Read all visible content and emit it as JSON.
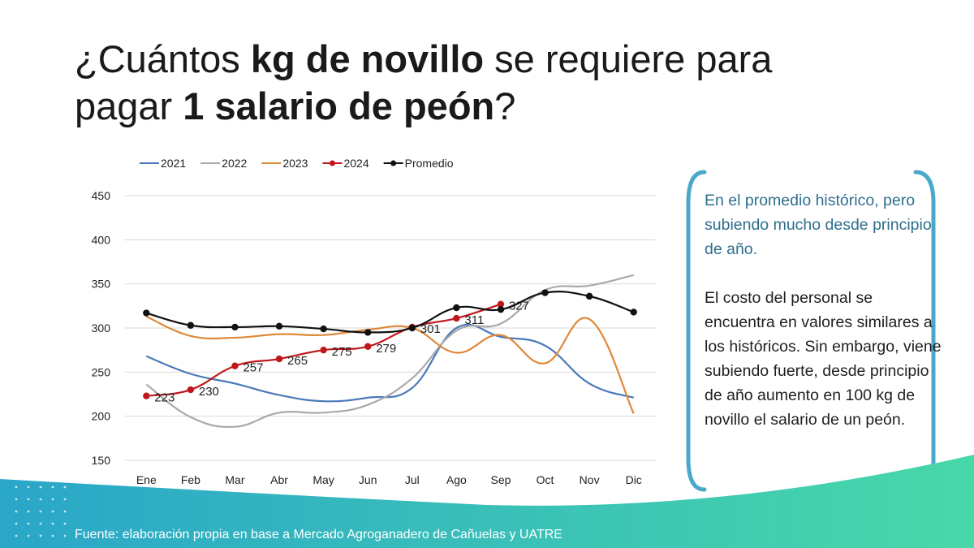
{
  "title": {
    "part1": "¿Cuántos ",
    "bold1": "kg de novillo",
    "part2": " se requiere para",
    "part3": "pagar ",
    "bold2": "1 salario de peón",
    "part4": "?"
  },
  "callout": {
    "paragraph1": "En el promedio histórico, pero subiendo mucho desde principio de año.",
    "paragraph2": "El costo del personal se encuentra en valores similares a los históricos. Sin embargo, viene subiendo fuerte, desde principio de año aumento en 100 kg de novillo el salario de un peón."
  },
  "footer": {
    "source": "Fuente: elaboración propia en base a Mercado Agroganadero de Cañuelas y UATRE"
  },
  "colors": {
    "s2021": "#4a7ab8",
    "s2022": "#a9a9a9",
    "s2023": "#e0883a",
    "s2024": "#c0161c",
    "promedio": "#111111",
    "bracket": "#4aa8c8",
    "wave_start": "#2aa6c9",
    "wave_end": "#48d8a8"
  },
  "chart_data": {
    "type": "line",
    "categories": [
      "Ene",
      "Feb",
      "Mar",
      "Abr",
      "May",
      "Jun",
      "Jul",
      "Ago",
      "Sep",
      "Oct",
      "Nov",
      "Dic"
    ],
    "ylim": [
      150,
      450
    ],
    "yticks": [
      150,
      200,
      250,
      300,
      350,
      400,
      450
    ],
    "grid": true,
    "legend_position": "top",
    "series": [
      {
        "name": "2021",
        "markers": false,
        "labels": false,
        "values": [
          268,
          248,
          237,
          224,
          217,
          221,
          232,
          300,
          290,
          280,
          237,
          221
        ]
      },
      {
        "name": "2022",
        "markers": false,
        "labels": false,
        "values": [
          236,
          199,
          188,
          204,
          204,
          213,
          243,
          297,
          305,
          343,
          348,
          360
        ]
      },
      {
        "name": "2023",
        "markers": false,
        "labels": false,
        "values": [
          313,
          291,
          289,
          293,
          292,
          298,
          300,
          272,
          292,
          260,
          310,
          203
        ]
      },
      {
        "name": "2024",
        "markers": true,
        "labels": true,
        "values": [
          223,
          230,
          257,
          265,
          275,
          279,
          301,
          311,
          327,
          null,
          null,
          null
        ]
      },
      {
        "name": "Promedio",
        "markers": true,
        "labels": false,
        "values": [
          317,
          303,
          301,
          302,
          299,
          295,
          300,
          323,
          321,
          340,
          336,
          318
        ]
      }
    ]
  }
}
